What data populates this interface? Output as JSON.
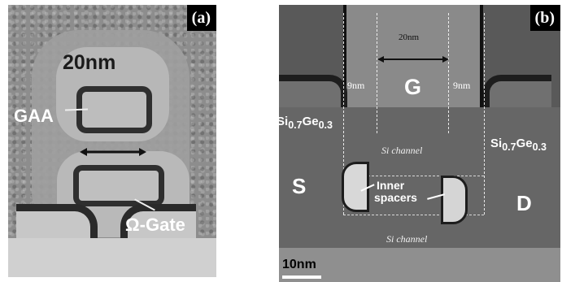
{
  "panels": {
    "left": {
      "tag": "(a)",
      "dimension_label": "20nm",
      "gaa_label": "GAA",
      "gate_label": "Ω-Gate"
    },
    "right": {
      "tag": "(b)",
      "width_label": "20nm",
      "left_spacing_label": "9nm",
      "right_spacing_label": "9nm",
      "gate_label": "G",
      "left_material_base": "Si",
      "left_material_sub1": "0.7",
      "left_material_mid": "Ge",
      "left_material_sub2": "0.3",
      "right_material_base": "Si",
      "right_material_sub1": "0.7",
      "right_material_mid": "Ge",
      "right_material_sub2": "0.3",
      "upper_channel": "Si channel",
      "lower_channel": "Si channel",
      "source_label": "S",
      "drain_label": "D",
      "inner_label_line1": "Inner",
      "inner_label_line2": "spacers",
      "scale_label": "10nm"
    }
  }
}
